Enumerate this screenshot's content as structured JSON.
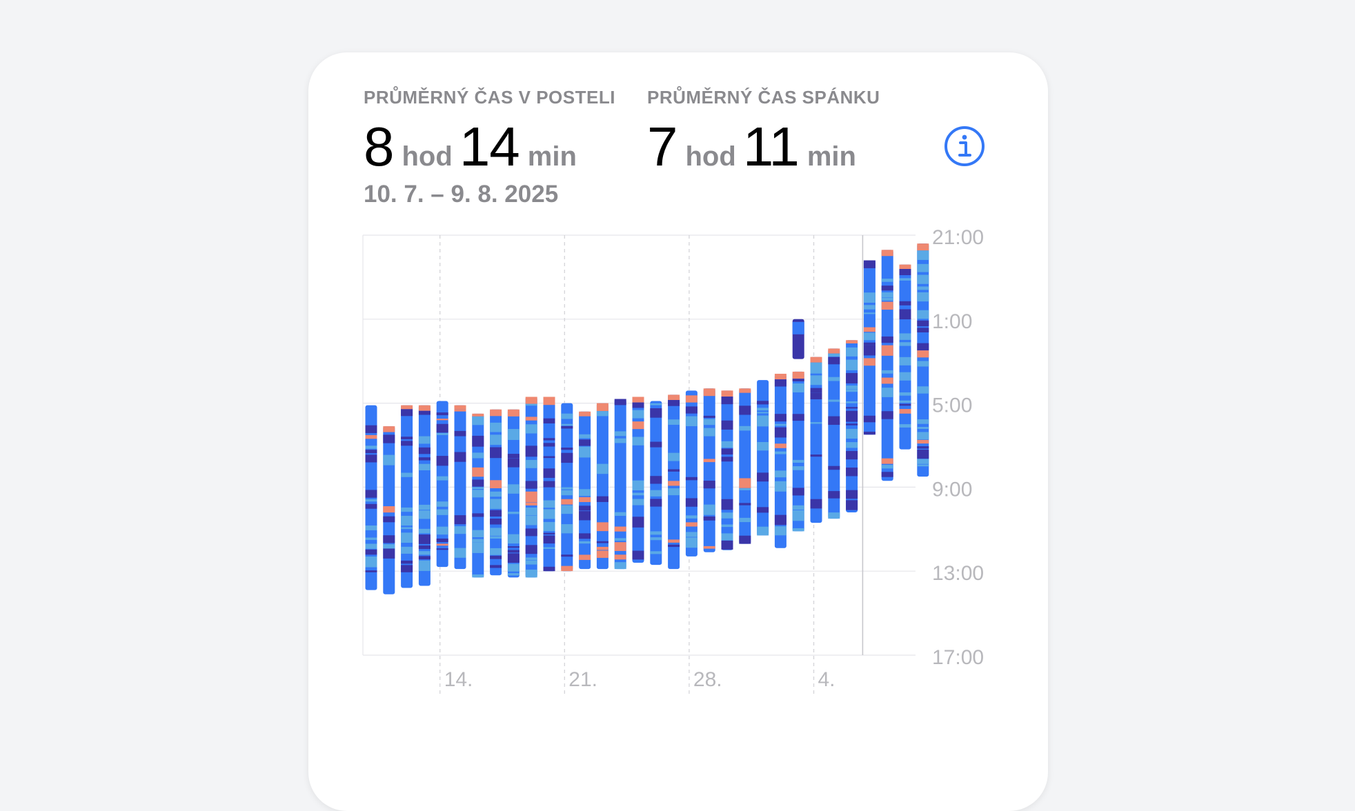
{
  "stats": {
    "in_bed": {
      "label": "PRŮMĚRNÝ ČAS V POSTELI",
      "hours": "8",
      "hours_unit": "hod",
      "minutes": "14",
      "minutes_unit": "min"
    },
    "asleep": {
      "label": "PRŮMĚRNÝ ČAS SPÁNKU",
      "hours": "7",
      "hours_unit": "hod",
      "minutes": "11",
      "minutes_unit": "min"
    },
    "date_range": "10. 7. – 9. 8. 2025"
  },
  "info_icon": "info-circle-icon",
  "colors": {
    "accent": "#3478f6",
    "awake": "#ef8870",
    "rem": "#5aa9e6",
    "core": "#3478f6",
    "deep": "#3a35a8",
    "grid": "#e5e5ea",
    "tick_label": "#b8b8bc"
  },
  "chart_data": {
    "type": "bar",
    "subtype": "range-bar (sleep periods per night)",
    "y_axis": {
      "position": "right",
      "tick_labels": [
        "21:00",
        "1:00",
        "5:00",
        "9:00",
        "13:00",
        "17:00"
      ],
      "range_hours_from_21": [
        0,
        20
      ]
    },
    "x_axis": {
      "tick_labels": [
        "14.",
        "21.",
        "28.",
        "4."
      ],
      "tick_dates": [
        "2025-07-14",
        "2025-07-21",
        "2025-07-28",
        "2025-08-04"
      ]
    },
    "segment_colors": {
      "awake": "#ef8870",
      "rem": "#5aa9e6",
      "core": "#3478f6",
      "deep": "#3a35a8"
    },
    "nights": [
      {
        "date": "2025-07-10",
        "start": "05:06",
        "end": "13:54"
      },
      {
        "date": "2025-07-11",
        "start": "06:06",
        "end": "14:06"
      },
      {
        "date": "2025-07-12",
        "start": "05:06",
        "end": "13:48"
      },
      {
        "date": "2025-07-13",
        "start": "05:06",
        "end": "13:42"
      },
      {
        "date": "2025-07-14",
        "start": "04:54",
        "end": "12:48"
      },
      {
        "date": "2025-07-15",
        "start": "05:06",
        "end": "12:54"
      },
      {
        "date": "2025-07-16",
        "start": "05:30",
        "end": "13:18"
      },
      {
        "date": "2025-07-17",
        "start": "05:18",
        "end": "13:12"
      },
      {
        "date": "2025-07-18",
        "start": "05:18",
        "end": "13:18"
      },
      {
        "date": "2025-07-19",
        "start": "04:42",
        "end": "13:18"
      },
      {
        "date": "2025-07-20",
        "start": "04:42",
        "end": "13:00"
      },
      {
        "date": "2025-07-21",
        "start": "05:00",
        "end": "13:00"
      },
      {
        "date": "2025-07-22",
        "start": "05:24",
        "end": "12:54"
      },
      {
        "date": "2025-07-23",
        "start": "05:00",
        "end": "12:54"
      },
      {
        "date": "2025-07-24",
        "start": "04:48",
        "end": "12:54"
      },
      {
        "date": "2025-07-25",
        "start": "04:42",
        "end": "12:36"
      },
      {
        "date": "2025-07-26",
        "start": "04:54",
        "end": "12:42"
      },
      {
        "date": "2025-07-27",
        "start": "04:36",
        "end": "12:54"
      },
      {
        "date": "2025-07-28",
        "start": "04:24",
        "end": "12:18"
      },
      {
        "date": "2025-07-29",
        "start": "04:18",
        "end": "12:06"
      },
      {
        "date": "2025-07-30",
        "start": "04:24",
        "end": "12:00"
      },
      {
        "date": "2025-07-31",
        "start": "04:18",
        "end": "11:42"
      },
      {
        "date": "2025-08-01",
        "start": "03:54",
        "end": "11:18"
      },
      {
        "date": "2025-08-02",
        "start": "03:36",
        "end": "11:54"
      },
      {
        "date": "2025-08-03",
        "start": "03:30",
        "end": "11:06",
        "extra_segment": {
          "start": "01:00",
          "end": "02:54"
        }
      },
      {
        "date": "2025-08-04",
        "start": "02:48",
        "end": "10:42"
      },
      {
        "date": "2025-08-05",
        "start": "02:24",
        "end": "10:30"
      },
      {
        "date": "2025-08-06",
        "start": "02:00",
        "end": "10:12"
      },
      {
        "date": "2025-08-07",
        "start": "22:12",
        "end": "06:30"
      },
      {
        "date": "2025-08-08",
        "start": "21:42",
        "end": "08:42"
      },
      {
        "date": "2025-08-09",
        "start": "22:24",
        "end": "07:12"
      },
      {
        "date": "2025-08-10",
        "start": "21:24",
        "end": "08:30"
      }
    ]
  }
}
